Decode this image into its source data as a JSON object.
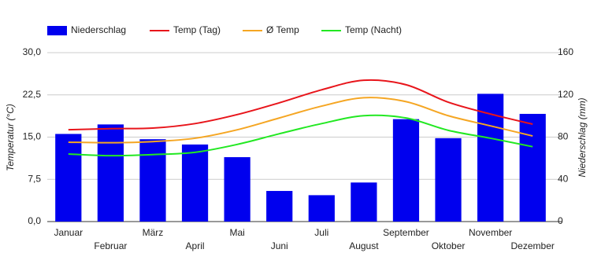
{
  "chart_data": {
    "type": "bar-line",
    "categories": [
      "Januar",
      "Februar",
      "März",
      "April",
      "Mai",
      "Juni",
      "Juli",
      "August",
      "September",
      "Oktober",
      "November",
      "Dezember"
    ],
    "y_label": "Temperatur (°C)",
    "y2_label": "Niederschlag (mm)",
    "ylim": [
      0,
      30
    ],
    "yticks": [
      {
        "value": 0,
        "label": "0,0"
      },
      {
        "value": 7.5,
        "label": "7,5"
      },
      {
        "value": 15,
        "label": "15,0"
      },
      {
        "value": 22.5,
        "label": "22,5"
      },
      {
        "value": 30,
        "label": "30,0"
      }
    ],
    "y2lim": [
      0,
      160
    ],
    "y2ticks": [
      0,
      40,
      80,
      120,
      160
    ],
    "grid": true,
    "series": [
      {
        "name": "Niederschlag",
        "type": "bar",
        "axis": "y2",
        "color": "#0000ee",
        "values": [
          83,
          92,
          78,
          73,
          61,
          29,
          25,
          37,
          97,
          79,
          121,
          102
        ]
      },
      {
        "name": "Temp (Tag)",
        "type": "line",
        "color": "#e8151b",
        "values": [
          16.3,
          16.5,
          16.6,
          17.4,
          19.0,
          21.1,
          23.4,
          25.1,
          24.3,
          21.2,
          19.1,
          17.3
        ]
      },
      {
        "name": "Ø Temp",
        "type": "line",
        "color": "#f5a623",
        "values": [
          14.1,
          14.0,
          14.2,
          14.8,
          16.3,
          18.4,
          20.5,
          22.0,
          21.3,
          18.8,
          17.0,
          15.2
        ]
      },
      {
        "name": "Temp (Nacht)",
        "type": "line",
        "color": "#22e822",
        "values": [
          12.0,
          11.7,
          11.9,
          12.3,
          13.7,
          15.6,
          17.4,
          18.8,
          18.4,
          16.2,
          14.8,
          13.3
        ]
      }
    ]
  }
}
